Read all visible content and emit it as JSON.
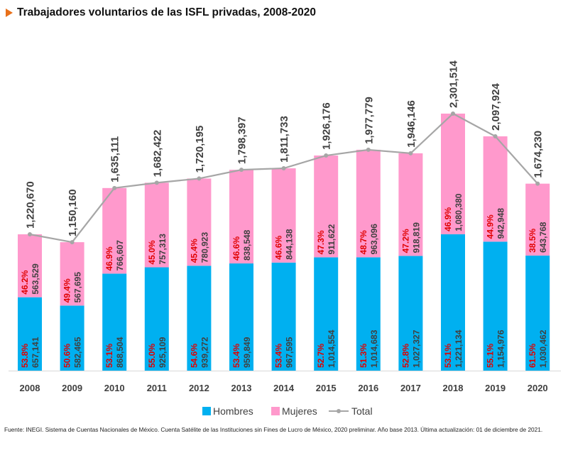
{
  "title": "Trabajadores voluntarios de las ISFL privadas, 2008-2020",
  "footer": "Fuente: INEGI. Sistema de Cuentas Nacionales de México. Cuenta Satélite de las Instituciones sin Fines de Lucro de México, 2020  preliminar. Año base 2013.  Última actualización: 01 de diciembre de 2021.",
  "colors": {
    "hombres": "#00b0f0",
    "mujeres": "#ff99cc",
    "total": "#a6a6a6",
    "pct": "#e00000",
    "value": "#404040"
  },
  "chart_data": {
    "type": "bar",
    "stacked": true,
    "title": "Trabajadores voluntarios de las ISFL privadas, 2008-2020",
    "categories": [
      "2008",
      "2009",
      "2010",
      "2011",
      "2012",
      "2013",
      "2014",
      "2015",
      "2016",
      "2017",
      "2018",
      "2019",
      "2020"
    ],
    "series": [
      {
        "name": "Hombres",
        "values": [
          657141,
          582465,
          868504,
          925109,
          939272,
          959849,
          967595,
          1014554,
          1014683,
          1027327,
          1221134,
          1154976,
          1030462
        ],
        "value_labels": [
          "657,141",
          "582,465",
          "868,504",
          "925,109",
          "939,272",
          "959,849",
          "967,595",
          "1,014,554",
          "1,014,683",
          "1,027,327",
          "1,221,134",
          "1,154,976",
          "1,030,462"
        ],
        "pct_labels": [
          "53.8%",
          "50.6%",
          "53.1%",
          "55.0%",
          "54.6%",
          "53.4%",
          "53.4%",
          "52.7%",
          "51.3%",
          "52.8%",
          "53.1%",
          "55.1%",
          "61.5%"
        ]
      },
      {
        "name": "Mujeres",
        "values": [
          563529,
          567695,
          766607,
          757313,
          780923,
          838548,
          844138,
          911622,
          963096,
          918819,
          1080380,
          942948,
          643768
        ],
        "value_labels": [
          "563,529",
          "567,695",
          "766,607",
          "757,313",
          "780,923",
          "838,548",
          "844,138",
          "911,622",
          "963,096",
          "918,819",
          "1,080,380",
          "942,948",
          "643,768"
        ],
        "pct_labels": [
          "46.2%",
          "49.4%",
          "46.9%",
          "45.0%",
          "45.4%",
          "46.6%",
          "46.6%",
          "47.3%",
          "48.7%",
          "47.2%",
          "46.9%",
          "44.9%",
          "38.5%"
        ]
      },
      {
        "name": "Total",
        "type": "line",
        "values": [
          1220670,
          1150160,
          1635111,
          1682422,
          1720195,
          1798397,
          1811733,
          1926176,
          1977779,
          1946146,
          2301514,
          2097924,
          1674230
        ],
        "value_labels": [
          "1,220,670",
          "1,150,160",
          "1,635,111",
          "1,682,422",
          "1,720,195",
          "1,798,397",
          "1,811,733",
          "1,926,176",
          "1,977,779",
          "1,946,146",
          "2,301,514",
          "2,097,924",
          "1,674,230"
        ]
      }
    ],
    "ylim": [
      0,
      2301514
    ],
    "xlabel": "",
    "ylabel": "",
    "legend": {
      "position": "bottom",
      "entries": [
        "Hombres",
        "Mujeres",
        "Total"
      ]
    }
  }
}
